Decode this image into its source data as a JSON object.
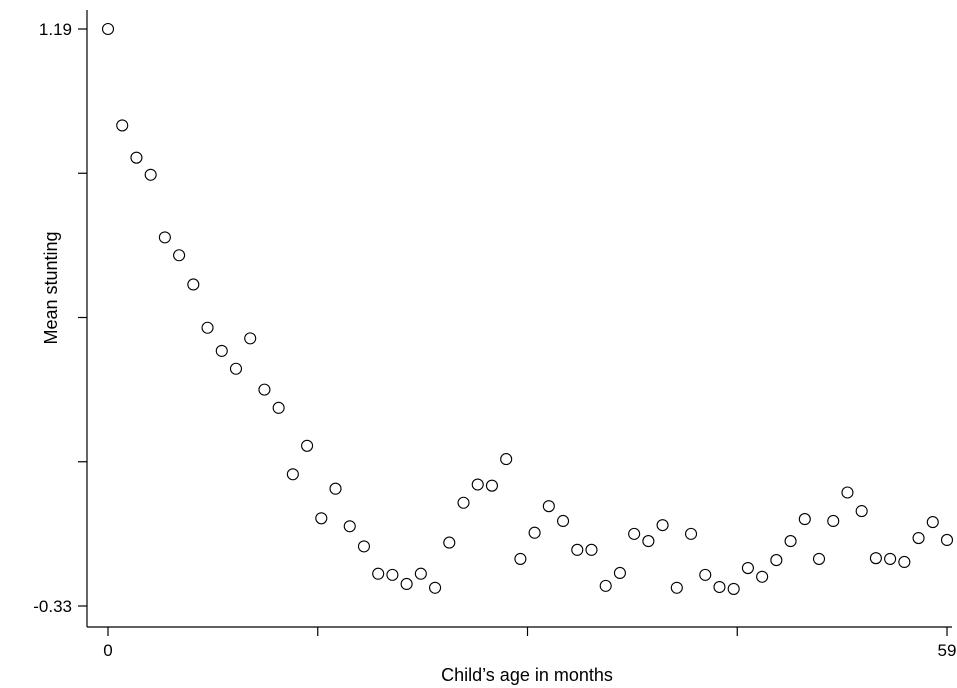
{
  "chart_data": {
    "type": "scatter",
    "xlabel": "Child’s age in months",
    "ylabel": "Mean stunting",
    "xlim": [
      0,
      59
    ],
    "ylim": [
      -0.33,
      1.19
    ],
    "x_tick_labels": [
      {
        "value": 0,
        "label": "0"
      },
      {
        "value": 59,
        "label": "59"
      }
    ],
    "x_minor_ticks": [
      14.75,
      29.5,
      44.25
    ],
    "y_tick_labels": [
      {
        "value": 1.19,
        "label": "1.19"
      },
      {
        "value": -0.33,
        "label": "-0.33"
      }
    ],
    "y_minor_ticks": [
      0.81,
      0.43,
      0.05
    ],
    "grid": false,
    "marker": "hollow-circle",
    "color": "#000000",
    "points": [
      {
        "x": 0,
        "y": 1.19
      },
      {
        "x": 1,
        "y": 0.936
      },
      {
        "x": 2,
        "y": 0.851
      },
      {
        "x": 3,
        "y": 0.806
      },
      {
        "x": 4,
        "y": 0.641
      },
      {
        "x": 5,
        "y": 0.594
      },
      {
        "x": 6,
        "y": 0.517
      },
      {
        "x": 7,
        "y": 0.403
      },
      {
        "x": 8,
        "y": 0.342
      },
      {
        "x": 9,
        "y": 0.295
      },
      {
        "x": 10,
        "y": 0.375
      },
      {
        "x": 11,
        "y": 0.24
      },
      {
        "x": 12,
        "y": 0.192
      },
      {
        "x": 13,
        "y": 0.017
      },
      {
        "x": 14,
        "y": 0.092
      },
      {
        "x": 15,
        "y": -0.099
      },
      {
        "x": 16,
        "y": -0.021
      },
      {
        "x": 17,
        "y": -0.12
      },
      {
        "x": 18,
        "y": -0.173
      },
      {
        "x": 19,
        "y": -0.245
      },
      {
        "x": 20,
        "y": -0.248
      },
      {
        "x": 21,
        "y": -0.272
      },
      {
        "x": 22,
        "y": -0.245
      },
      {
        "x": 23,
        "y": -0.282
      },
      {
        "x": 24,
        "y": -0.163
      },
      {
        "x": 25,
        "y": -0.058
      },
      {
        "x": 26,
        "y": -0.01
      },
      {
        "x": 27,
        "y": -0.013
      },
      {
        "x": 28,
        "y": 0.057
      },
      {
        "x": 29,
        "y": -0.206
      },
      {
        "x": 30,
        "y": -0.137
      },
      {
        "x": 31,
        "y": -0.067
      },
      {
        "x": 32,
        "y": -0.106
      },
      {
        "x": 33,
        "y": -0.182
      },
      {
        "x": 34,
        "y": -0.182
      },
      {
        "x": 35,
        "y": -0.277
      },
      {
        "x": 36,
        "y": -0.243
      },
      {
        "x": 37,
        "y": -0.14
      },
      {
        "x": 38,
        "y": -0.159
      },
      {
        "x": 39,
        "y": -0.117
      },
      {
        "x": 40,
        "y": -0.282
      },
      {
        "x": 41,
        "y": -0.14
      },
      {
        "x": 42,
        "y": -0.248
      },
      {
        "x": 43,
        "y": -0.28
      },
      {
        "x": 44,
        "y": -0.285
      },
      {
        "x": 45,
        "y": -0.23
      },
      {
        "x": 46,
        "y": -0.253
      },
      {
        "x": 47,
        "y": -0.209
      },
      {
        "x": 48,
        "y": -0.159
      },
      {
        "x": 49,
        "y": -0.101
      },
      {
        "x": 50,
        "y": -0.206
      },
      {
        "x": 51,
        "y": -0.106
      },
      {
        "x": 52,
        "y": -0.031
      },
      {
        "x": 53,
        "y": -0.08
      },
      {
        "x": 54,
        "y": -0.204
      },
      {
        "x": 55,
        "y": -0.206
      },
      {
        "x": 56,
        "y": -0.214
      },
      {
        "x": 57,
        "y": -0.151
      },
      {
        "x": 58,
        "y": -0.109
      },
      {
        "x": 59,
        "y": -0.156
      }
    ]
  }
}
